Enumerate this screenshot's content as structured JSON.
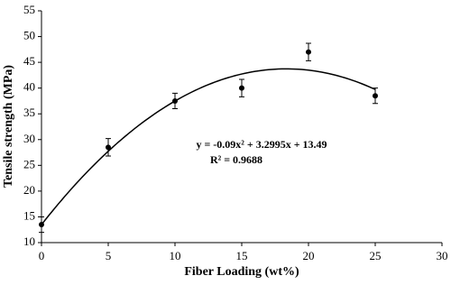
{
  "chart_data": {
    "type": "scatter",
    "x_label": "Fiber Loading (wt%)",
    "y_label": "Tensile strength (MPa)",
    "x": [
      0,
      5,
      10,
      15,
      20,
      25
    ],
    "values": [
      13.5,
      28.5,
      37.5,
      40,
      47,
      38.5
    ],
    "errors": [
      1.5,
      1.7,
      1.5,
      1.7,
      1.7,
      1.5
    ],
    "color": "#000000",
    "trendline": {
      "coefficients": [
        -0.09,
        3.2995,
        13.49
      ],
      "equation": "y = -0.09x² + 3.2995x + 13.49",
      "r_squared": "R² = 0.9688"
    },
    "xlim": [
      0,
      30
    ],
    "xticks": [
      0,
      5,
      10,
      15,
      20,
      25,
      30
    ],
    "ylim": [
      10,
      55
    ],
    "yticks": [
      10,
      15,
      20,
      25,
      30,
      35,
      40,
      45,
      50,
      55
    ],
    "grid": false
  }
}
